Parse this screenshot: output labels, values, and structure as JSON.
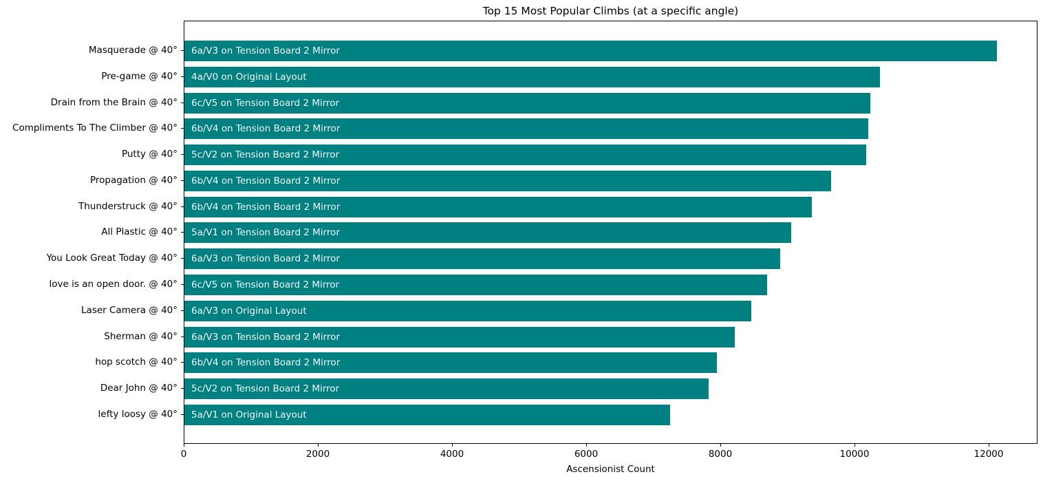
{
  "chart_data": {
    "type": "bar",
    "orientation": "horizontal",
    "title": "Top 15 Most Popular Climbs (at a specific angle)",
    "xlabel": "Ascensionist Count",
    "ylabel": "",
    "xlim": [
      0,
      12730
    ],
    "xticks": [
      0,
      2000,
      4000,
      6000,
      8000,
      10000,
      12000
    ],
    "grid": false,
    "legend": null,
    "bar_color": "#008080",
    "bar_label_color": "#f2f6f6",
    "categories": [
      "Masquerade @ 40°",
      "Pre-game @ 40°",
      "Drain from the Brain @ 40°",
      "Compliments To The Climber @ 40°",
      "Putty @ 40°",
      "Propagation @ 40°",
      "Thunderstruck @ 40°",
      "All Plastic @ 40°",
      "You Look Great Today @ 40°",
      "love is an open door. @ 40°",
      "Laser Camera @ 40°",
      "Sherman @ 40°",
      "hop scotch @ 40°",
      "Dear John @ 40°",
      "lefty loosy @ 40°"
    ],
    "values": [
      12110,
      10370,
      10230,
      10190,
      10160,
      9640,
      9350,
      9050,
      8880,
      8690,
      8450,
      8200,
      7940,
      7820,
      7240
    ],
    "bar_labels": [
      "6a/V3 on Tension Board 2 Mirror",
      "4a/V0 on Original Layout",
      "6c/V5 on Tension Board 2 Mirror",
      "6b/V4 on Tension Board 2 Mirror",
      "5c/V2 on Tension Board 2 Mirror",
      "6b/V4 on Tension Board 2 Mirror",
      "6b/V4 on Tension Board 2 Mirror",
      "5a/V1 on Tension Board 2 Mirror",
      "6a/V3 on Tension Board 2 Mirror",
      "6c/V5 on Tension Board 2 Mirror",
      "6a/V3 on Original Layout",
      "6a/V3 on Tension Board 2 Mirror",
      "6b/V4 on Tension Board 2 Mirror",
      "5c/V2 on Tension Board 2 Mirror",
      "5a/V1 on Original Layout"
    ]
  }
}
